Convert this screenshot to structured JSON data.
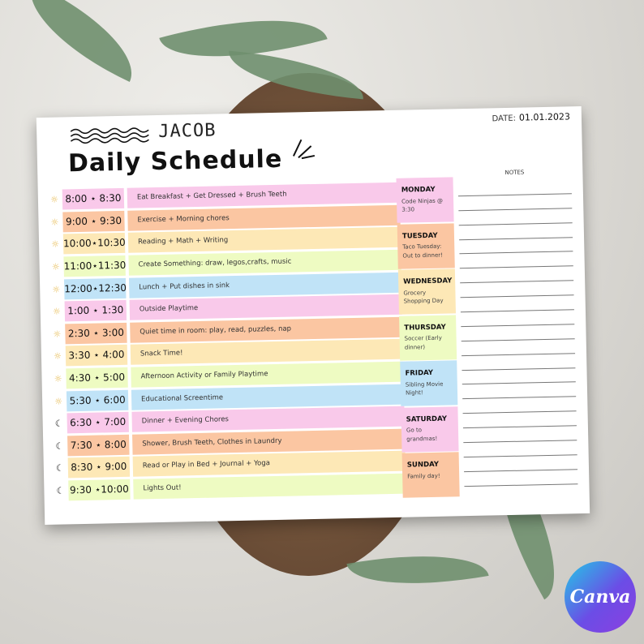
{
  "header": {
    "name": "JACOB",
    "title": "Daily Schedule",
    "date_label": "DATE:",
    "date": "01.01.2023"
  },
  "colors": {
    "pink": "#f9c9ea",
    "orange": "#fbc6a2",
    "yellow": "#fde8b6",
    "lime": "#eefbc2",
    "blue": "#c0e3f7"
  },
  "schedule": [
    {
      "icon": "sun-icon",
      "time": "8:00 ⋆ 8:30",
      "activity": "Eat Breakfast + Get Dressed + Brush Teeth",
      "color": "#f9c9ea"
    },
    {
      "icon": "sun-icon",
      "time": "9:00 ⋆ 9:30",
      "activity": "Exercise + Morning chores",
      "color": "#fbc6a2"
    },
    {
      "icon": "sun-icon",
      "time": "10:00⋆10:30",
      "activity": "Reading + Math + Writing",
      "color": "#fde8b6"
    },
    {
      "icon": "sun-icon",
      "time": "11:00⋆11:30",
      "activity": "Create Something: draw, legos,crafts, music",
      "color": "#eefbc2"
    },
    {
      "icon": "sun-icon",
      "time": "12:00⋆12:30",
      "activity": "Lunch + Put dishes in sink",
      "color": "#c0e3f7"
    },
    {
      "icon": "sun-icon",
      "time": "1:00 ⋆ 1:30",
      "activity": "Outside Playtime",
      "color": "#f9c9ea"
    },
    {
      "icon": "sun-icon",
      "time": "2:30 ⋆ 3:00",
      "activity": "Quiet time in room: play, read, puzzles, nap",
      "color": "#fbc6a2"
    },
    {
      "icon": "sun-icon",
      "time": "3:30 ⋆ 4:00",
      "activity": "Snack Time!",
      "color": "#fde8b6"
    },
    {
      "icon": "sun-icon",
      "time": "4:30 ⋆ 5:00",
      "activity": "Afternoon Activity or Family Playtime",
      "color": "#eefbc2"
    },
    {
      "icon": "sun-icon",
      "time": "5:30 ⋆ 6:00",
      "activity": "Educational Screentime",
      "color": "#c0e3f7"
    },
    {
      "icon": "moon-icon",
      "time": "6:30 ⋆ 7:00",
      "activity": "Dinner + Evening Chores",
      "color": "#f9c9ea"
    },
    {
      "icon": "moon-icon",
      "time": "7:30 ⋆ 8:00",
      "activity": "Shower, Brush Teeth, Clothes in Laundry",
      "color": "#fbc6a2"
    },
    {
      "icon": "moon-icon",
      "time": "8:30 ⋆ 9:00",
      "activity": "Read or Play in Bed + Journal + Yoga",
      "color": "#fde8b6"
    },
    {
      "icon": "moon-icon",
      "time": "9:30 ⋆10:00",
      "activity": "Lights Out!",
      "color": "#eefbc2"
    }
  ],
  "days": [
    {
      "day": "MONDAY",
      "note": "Code Ninjas @ 3:30",
      "color": "#f9c9ea"
    },
    {
      "day": "TUESDAY",
      "note": "Taco Tuesday: Out to dinner!",
      "color": "#fbc6a2"
    },
    {
      "day": "WEDNESDAY",
      "note": "Grocery Shopping Day",
      "color": "#fde8b6"
    },
    {
      "day": "THURSDAY",
      "note": "Soccer (Early dinner)",
      "color": "#eefbc2"
    },
    {
      "day": "FRIDAY",
      "note": "Sibling Movie Night!",
      "color": "#c0e3f7"
    },
    {
      "day": "SATURDAY",
      "note": "Go to grandmas!",
      "color": "#f9c9ea"
    },
    {
      "day": "SUNDAY",
      "note": "Family day!",
      "color": "#fbc6a2"
    }
  ],
  "notes": {
    "title": "NOTES"
  },
  "badge": {
    "label": "Canva"
  }
}
